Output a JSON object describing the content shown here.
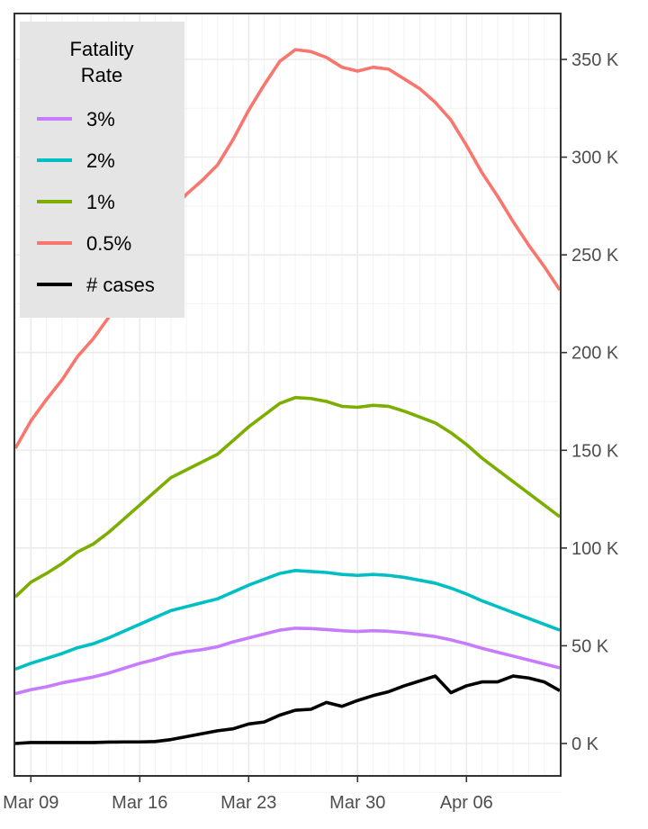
{
  "chart_data": {
    "type": "line",
    "title": "",
    "xlabel": "",
    "ylabel": "",
    "x_range": [
      "2020-03-08",
      "2020-04-12"
    ],
    "x_ticks": [
      {
        "date": "2020-03-09",
        "label": "Mar 09"
      },
      {
        "date": "2020-03-16",
        "label": "Mar 16"
      },
      {
        "date": "2020-03-23",
        "label": "Mar 23"
      },
      {
        "date": "2020-03-30",
        "label": "Mar 30"
      },
      {
        "date": "2020-04-06",
        "label": "Apr 06"
      }
    ],
    "ylim": [
      -17000,
      373000
    ],
    "y_axis_position": "right",
    "y_ticks": [
      {
        "value": 0,
        "label": "0 K"
      },
      {
        "value": 50000,
        "label": "50 K"
      },
      {
        "value": 100000,
        "label": "100 K"
      },
      {
        "value": 150000,
        "label": "150 K"
      },
      {
        "value": 200000,
        "label": "200 K"
      },
      {
        "value": 250000,
        "label": "250 K"
      },
      {
        "value": 300000,
        "label": "300 K"
      },
      {
        "value": 350000,
        "label": "350 K"
      }
    ],
    "grid": true,
    "legend": {
      "title": "Fatality Rate",
      "title_lines": [
        "Fatality",
        "Rate"
      ],
      "position": "top-left",
      "entries": [
        "3%",
        "2%",
        "1%",
        "0.5%",
        "# cases"
      ]
    },
    "series": [
      {
        "name": "0.5%",
        "color": "#F8766D",
        "points": [
          [
            "2020-03-08",
            151000
          ],
          [
            "2020-03-09",
            165000
          ],
          [
            "2020-03-10",
            176000
          ],
          [
            "2020-03-11",
            186000
          ],
          [
            "2020-03-12",
            198000
          ],
          [
            "2020-03-13",
            207000
          ],
          [
            "2020-03-14",
            218000
          ],
          [
            "2020-03-15",
            233000
          ],
          [
            "2020-03-16",
            247000
          ],
          [
            "2020-03-17",
            262000
          ],
          [
            "2020-03-18",
            272000
          ],
          [
            "2020-03-19",
            281000
          ],
          [
            "2020-03-20",
            288000
          ],
          [
            "2020-03-21",
            296000
          ],
          [
            "2020-03-22",
            309000
          ],
          [
            "2020-03-23",
            324000
          ],
          [
            "2020-03-24",
            337000
          ],
          [
            "2020-03-25",
            349000
          ],
          [
            "2020-03-26",
            355000
          ],
          [
            "2020-03-27",
            354000
          ],
          [
            "2020-03-28",
            351000
          ],
          [
            "2020-03-29",
            346000
          ],
          [
            "2020-03-30",
            344000
          ],
          [
            "2020-03-31",
            346000
          ],
          [
            "2020-04-01",
            345000
          ],
          [
            "2020-04-02",
            340000
          ],
          [
            "2020-04-03",
            335000
          ],
          [
            "2020-04-04",
            328000
          ],
          [
            "2020-04-05",
            319000
          ],
          [
            "2020-04-06",
            306000
          ],
          [
            "2020-04-07",
            292000
          ],
          [
            "2020-04-08",
            280000
          ],
          [
            "2020-04-09",
            267000
          ],
          [
            "2020-04-10",
            255000
          ],
          [
            "2020-04-11",
            244000
          ],
          [
            "2020-04-12",
            232000
          ]
        ]
      },
      {
        "name": "1%",
        "color": "#7CAE00",
        "points": [
          [
            "2020-03-08",
            75000
          ],
          [
            "2020-03-09",
            82500
          ],
          [
            "2020-03-10",
            87000
          ],
          [
            "2020-03-11",
            92000
          ],
          [
            "2020-03-12",
            98000
          ],
          [
            "2020-03-13",
            102000
          ],
          [
            "2020-03-14",
            108000
          ],
          [
            "2020-03-15",
            115000
          ],
          [
            "2020-03-16",
            122000
          ],
          [
            "2020-03-17",
            129000
          ],
          [
            "2020-03-18",
            136000
          ],
          [
            "2020-03-19",
            140000
          ],
          [
            "2020-03-20",
            144000
          ],
          [
            "2020-03-21",
            148000
          ],
          [
            "2020-03-22",
            155000
          ],
          [
            "2020-03-23",
            162000
          ],
          [
            "2020-03-24",
            168000
          ],
          [
            "2020-03-25",
            174000
          ],
          [
            "2020-03-26",
            177000
          ],
          [
            "2020-03-27",
            176500
          ],
          [
            "2020-03-28",
            175000
          ],
          [
            "2020-03-29",
            172500
          ],
          [
            "2020-03-30",
            172000
          ],
          [
            "2020-03-31",
            173000
          ],
          [
            "2020-04-01",
            172500
          ],
          [
            "2020-04-02",
            170000
          ],
          [
            "2020-04-03",
            167000
          ],
          [
            "2020-04-04",
            164000
          ],
          [
            "2020-04-05",
            159000
          ],
          [
            "2020-04-06",
            153000
          ],
          [
            "2020-04-07",
            146000
          ],
          [
            "2020-04-08",
            140000
          ],
          [
            "2020-04-09",
            134000
          ],
          [
            "2020-04-10",
            128000
          ],
          [
            "2020-04-11",
            122000
          ],
          [
            "2020-04-12",
            116000
          ]
        ]
      },
      {
        "name": "2%",
        "color": "#00BFC4",
        "points": [
          [
            "2020-03-08",
            38000
          ],
          [
            "2020-03-09",
            41000
          ],
          [
            "2020-03-10",
            43500
          ],
          [
            "2020-03-11",
            46000
          ],
          [
            "2020-03-12",
            49000
          ],
          [
            "2020-03-13",
            51000
          ],
          [
            "2020-03-14",
            54000
          ],
          [
            "2020-03-15",
            57500
          ],
          [
            "2020-03-16",
            61000
          ],
          [
            "2020-03-17",
            64500
          ],
          [
            "2020-03-18",
            68000
          ],
          [
            "2020-03-19",
            70000
          ],
          [
            "2020-03-20",
            72000
          ],
          [
            "2020-03-21",
            74000
          ],
          [
            "2020-03-22",
            77500
          ],
          [
            "2020-03-23",
            81000
          ],
          [
            "2020-03-24",
            84000
          ],
          [
            "2020-03-25",
            87000
          ],
          [
            "2020-03-26",
            88500
          ],
          [
            "2020-03-27",
            88000
          ],
          [
            "2020-03-28",
            87500
          ],
          [
            "2020-03-29",
            86500
          ],
          [
            "2020-03-30",
            86000
          ],
          [
            "2020-03-31",
            86500
          ],
          [
            "2020-04-01",
            86000
          ],
          [
            "2020-04-02",
            85000
          ],
          [
            "2020-04-03",
            83500
          ],
          [
            "2020-04-04",
            82000
          ],
          [
            "2020-04-05",
            79500
          ],
          [
            "2020-04-06",
            76500
          ],
          [
            "2020-04-07",
            73000
          ],
          [
            "2020-04-08",
            70000
          ],
          [
            "2020-04-09",
            67000
          ],
          [
            "2020-04-10",
            64000
          ],
          [
            "2020-04-11",
            61000
          ],
          [
            "2020-04-12",
            58000
          ]
        ]
      },
      {
        "name": "3%",
        "color": "#C77CFF",
        "points": [
          [
            "2020-03-08",
            25500
          ],
          [
            "2020-03-09",
            27500
          ],
          [
            "2020-03-10",
            29000
          ],
          [
            "2020-03-11",
            31000
          ],
          [
            "2020-03-12",
            32500
          ],
          [
            "2020-03-13",
            34000
          ],
          [
            "2020-03-14",
            36000
          ],
          [
            "2020-03-15",
            38500
          ],
          [
            "2020-03-16",
            41000
          ],
          [
            "2020-03-17",
            43000
          ],
          [
            "2020-03-18",
            45500
          ],
          [
            "2020-03-19",
            47000
          ],
          [
            "2020-03-20",
            48000
          ],
          [
            "2020-03-21",
            49500
          ],
          [
            "2020-03-22",
            52000
          ],
          [
            "2020-03-23",
            54000
          ],
          [
            "2020-03-24",
            56000
          ],
          [
            "2020-03-25",
            58000
          ],
          [
            "2020-03-26",
            59000
          ],
          [
            "2020-03-27",
            58800
          ],
          [
            "2020-03-28",
            58300
          ],
          [
            "2020-03-29",
            57700
          ],
          [
            "2020-03-30",
            57300
          ],
          [
            "2020-03-31",
            57700
          ],
          [
            "2020-04-01",
            57400
          ],
          [
            "2020-04-02",
            56700
          ],
          [
            "2020-04-03",
            55700
          ],
          [
            "2020-04-04",
            54700
          ],
          [
            "2020-04-05",
            53000
          ],
          [
            "2020-04-06",
            51000
          ],
          [
            "2020-04-07",
            48700
          ],
          [
            "2020-04-08",
            46700
          ],
          [
            "2020-04-09",
            44700
          ],
          [
            "2020-04-10",
            42700
          ],
          [
            "2020-04-11",
            40700
          ],
          [
            "2020-04-12",
            38700
          ]
        ]
      },
      {
        "name": "# cases",
        "color": "#000000",
        "points": [
          [
            "2020-03-08",
            0
          ],
          [
            "2020-03-09",
            500
          ],
          [
            "2020-03-10",
            500
          ],
          [
            "2020-03-11",
            500
          ],
          [
            "2020-03-12",
            500
          ],
          [
            "2020-03-13",
            500
          ],
          [
            "2020-03-14",
            700
          ],
          [
            "2020-03-15",
            800
          ],
          [
            "2020-03-16",
            800
          ],
          [
            "2020-03-17",
            1000
          ],
          [
            "2020-03-18",
            2000
          ],
          [
            "2020-03-19",
            3500
          ],
          [
            "2020-03-20",
            5000
          ],
          [
            "2020-03-21",
            6500
          ],
          [
            "2020-03-22",
            7500
          ],
          [
            "2020-03-23",
            10000
          ],
          [
            "2020-03-24",
            11000
          ],
          [
            "2020-03-25",
            14500
          ],
          [
            "2020-03-26",
            17000
          ],
          [
            "2020-03-27",
            17500
          ],
          [
            "2020-03-28",
            21000
          ],
          [
            "2020-03-29",
            19000
          ],
          [
            "2020-03-30",
            22000
          ],
          [
            "2020-03-31",
            24500
          ],
          [
            "2020-04-01",
            26500
          ],
          [
            "2020-04-02",
            29500
          ],
          [
            "2020-04-03",
            32000
          ],
          [
            "2020-04-04",
            34500
          ],
          [
            "2020-04-05",
            26000
          ],
          [
            "2020-04-06",
            29500
          ],
          [
            "2020-04-07",
            31500
          ],
          [
            "2020-04-08",
            31500
          ],
          [
            "2020-04-09",
            34500
          ],
          [
            "2020-04-10",
            33500
          ],
          [
            "2020-04-11",
            31500
          ],
          [
            "2020-04-12",
            27000
          ]
        ]
      }
    ]
  }
}
